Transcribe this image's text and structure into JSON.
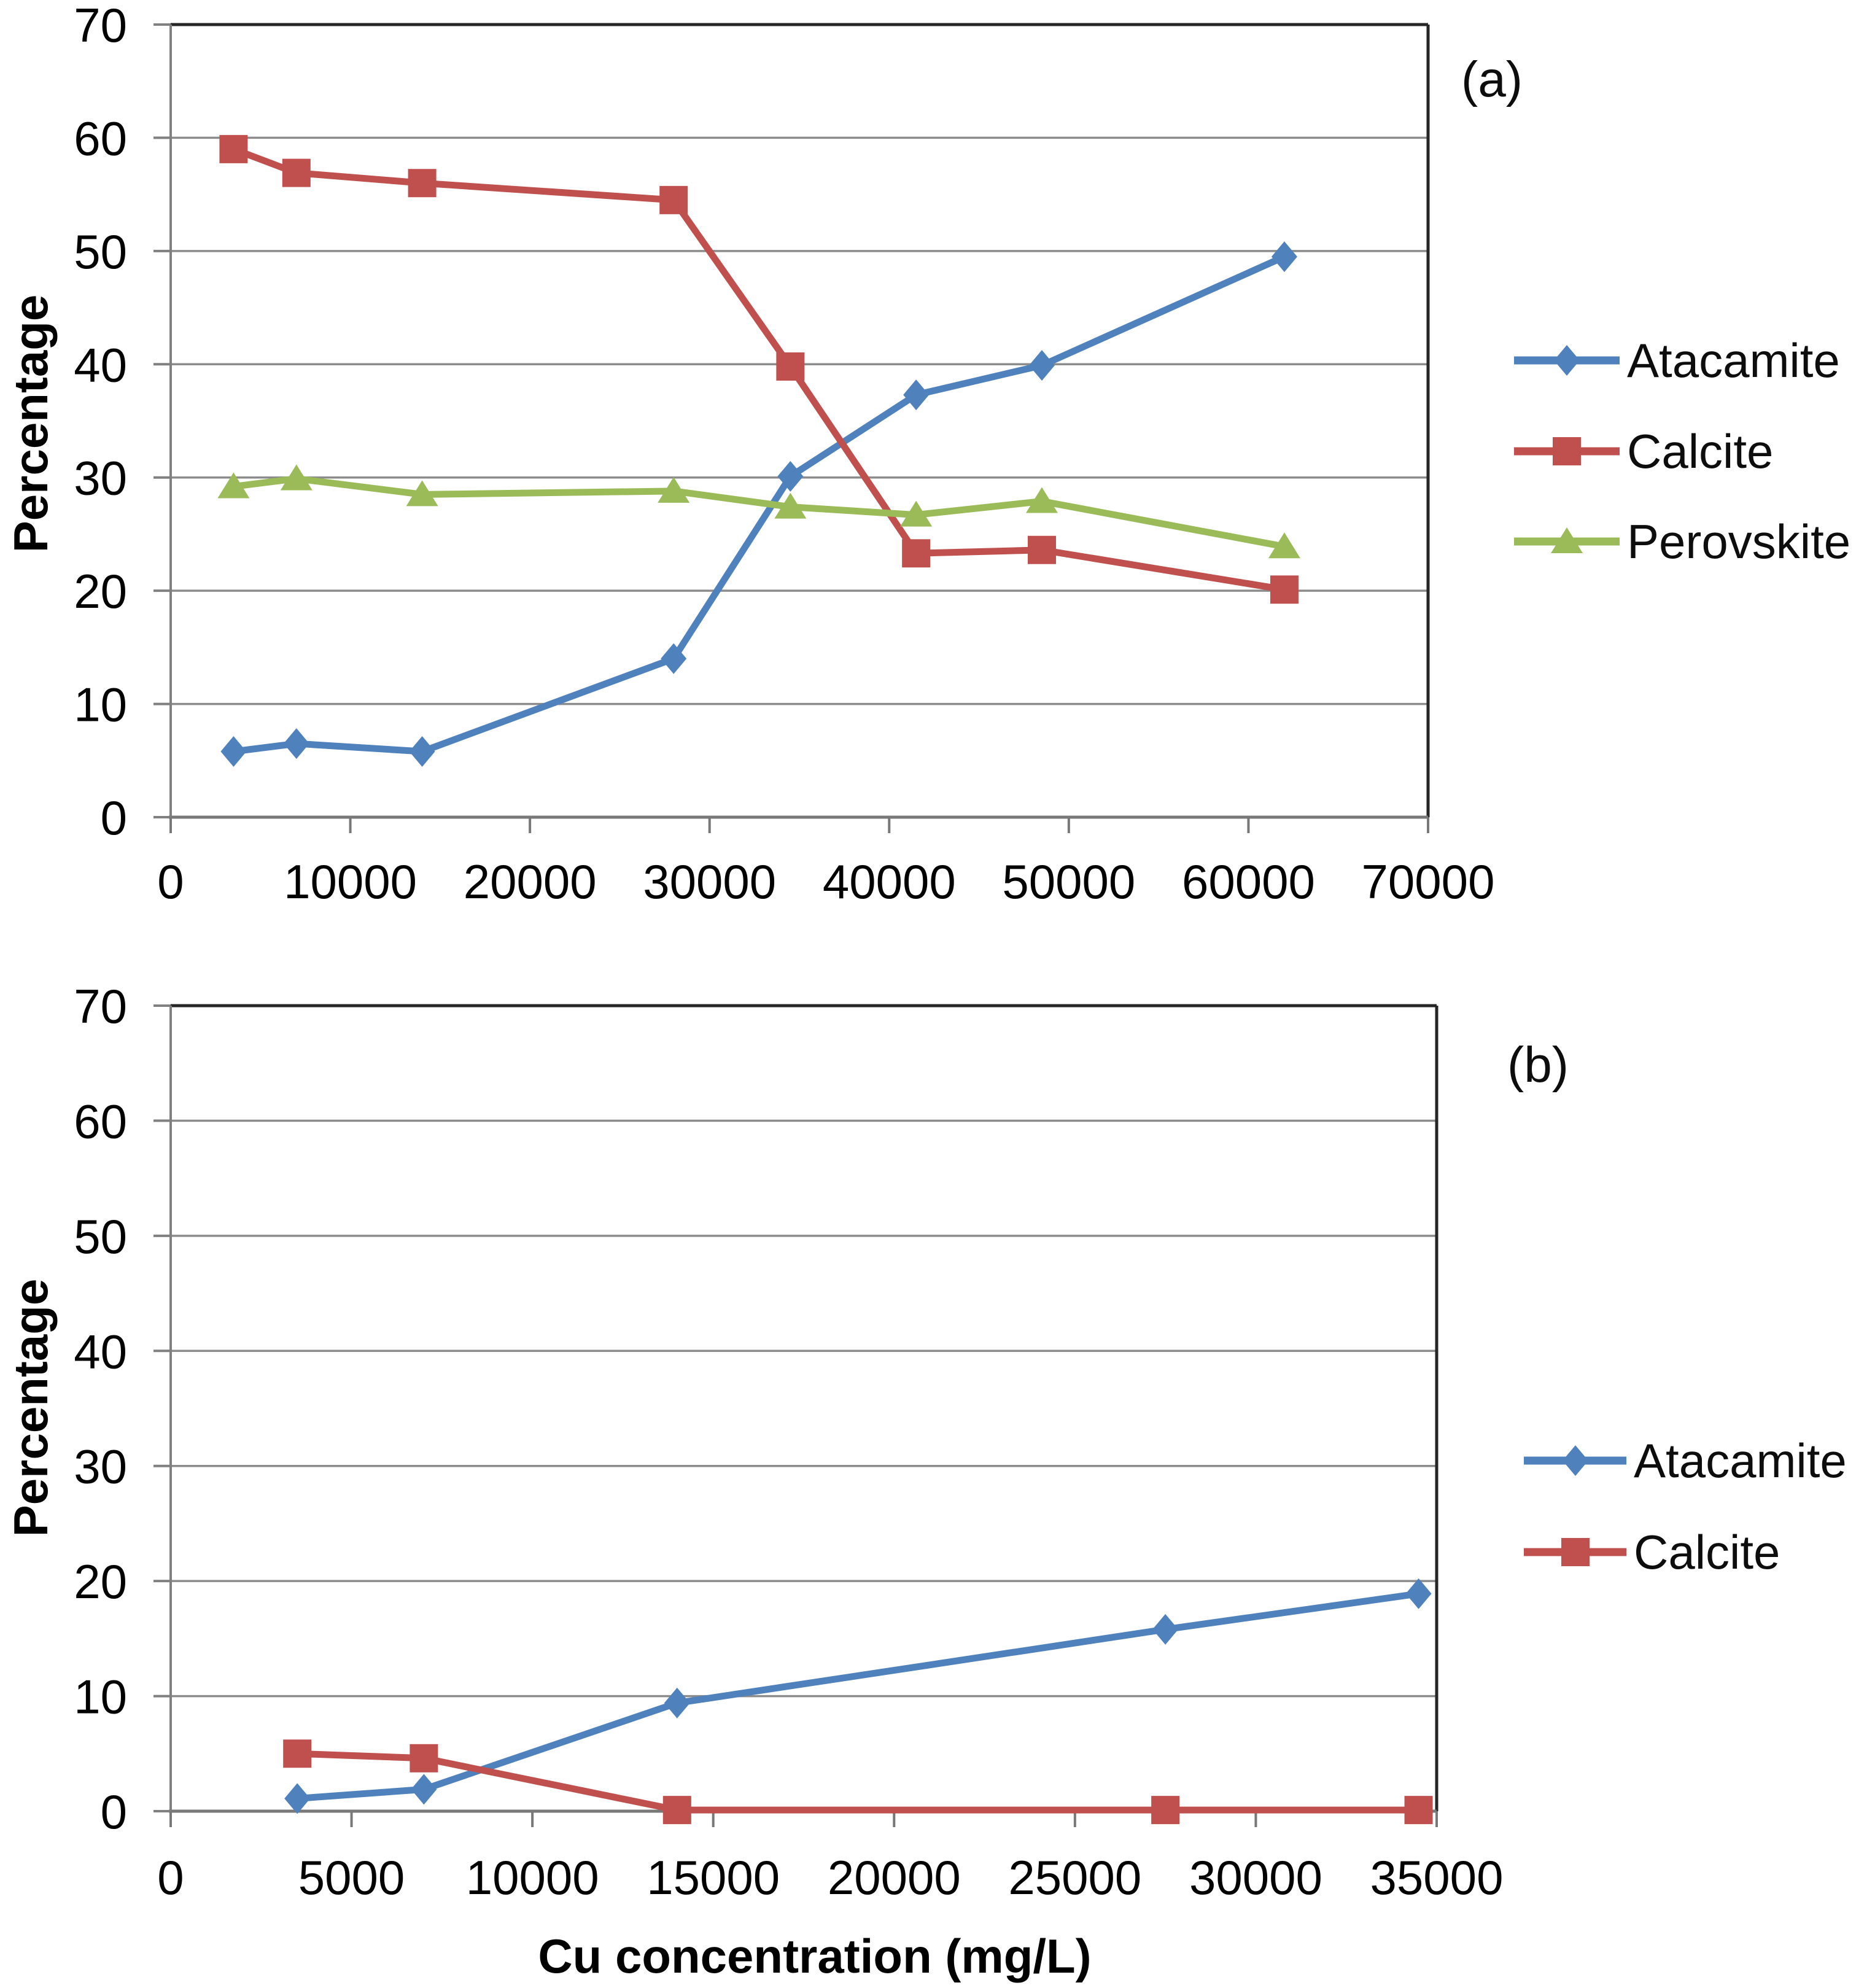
{
  "page": {
    "background": "#ffffff"
  },
  "style": {
    "grid_color": "#8c8c8c",
    "axis_color": "#787878",
    "border_color": "#262626",
    "text_color": "#0d0d0d"
  },
  "chart_data": [
    {
      "type": "line",
      "panel_label": "(a)",
      "title": "",
      "xlabel": "",
      "ylabel": "Percentage",
      "xlim": [
        0,
        70000
      ],
      "ylim": [
        0,
        70
      ],
      "x_ticks": [
        0,
        10000,
        20000,
        30000,
        40000,
        50000,
        60000,
        70000
      ],
      "y_ticks": [
        0,
        10,
        20,
        30,
        40,
        50,
        60,
        70
      ],
      "grid": "horizontal",
      "legend_position": "right",
      "x": [
        3500,
        7000,
        14000,
        28000,
        34500,
        41500,
        48500,
        62000
      ],
      "series": [
        {
          "name": "Atacamite",
          "color": "#4F81BD",
          "marker": "diamond",
          "values": [
            5.8,
            6.5,
            5.8,
            14.0,
            30.1,
            37.3,
            39.9,
            49.5
          ]
        },
        {
          "name": "Calcite",
          "color": "#C0504D",
          "marker": "square",
          "values": [
            59.0,
            56.9,
            56.0,
            54.5,
            39.8,
            23.3,
            23.6,
            20.1
          ]
        },
        {
          "name": "Perovskite",
          "color": "#9BBB59",
          "marker": "triangle",
          "values": [
            29.2,
            29.9,
            28.5,
            28.8,
            27.4,
            26.7,
            27.9,
            23.9
          ]
        }
      ]
    },
    {
      "type": "line",
      "panel_label": "(b)",
      "title": "",
      "xlabel": "Cu concentration (mg/L)",
      "ylabel": "Percentage",
      "xlim": [
        0,
        35000
      ],
      "ylim": [
        0,
        70
      ],
      "x_ticks": [
        0,
        5000,
        10000,
        15000,
        20000,
        25000,
        30000,
        35000
      ],
      "y_ticks": [
        0,
        10,
        20,
        30,
        40,
        50,
        60,
        70
      ],
      "grid": "horizontal",
      "legend_position": "right",
      "x": [
        3500,
        7000,
        14000,
        27500,
        34500
      ],
      "series": [
        {
          "name": "Atacamite",
          "color": "#4F81BD",
          "marker": "diamond",
          "values": [
            1.1,
            1.9,
            9.4,
            15.8,
            18.9
          ]
        },
        {
          "name": "Calcite",
          "color": "#C0504D",
          "marker": "square",
          "values": [
            5.0,
            4.6,
            0.1,
            0.1,
            0.1
          ]
        }
      ]
    }
  ]
}
